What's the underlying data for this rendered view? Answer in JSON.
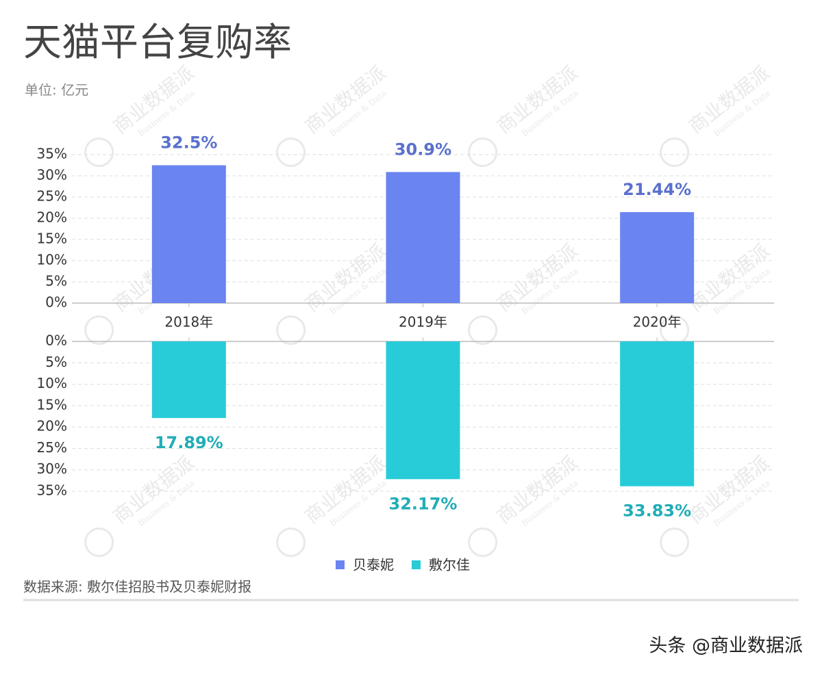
{
  "chart_data": [
    {
      "type": "bar",
      "title": "天猫平台复购率",
      "subtitle": "单位: 亿元",
      "categories": [
        "2018年",
        "2019年",
        "2020年"
      ],
      "series": [
        {
          "name": "贝泰妮",
          "color": "#6a84f0",
          "values": [
            32.5,
            30.9,
            21.44
          ],
          "value_labels": [
            "32.5%",
            "30.9%",
            "21.44%"
          ]
        }
      ],
      "ylim": [
        0,
        35
      ],
      "yticks": [
        {
          "value": 0,
          "label": "0%"
        },
        {
          "value": 5,
          "label": "5%"
        },
        {
          "value": 10,
          "label": "10%"
        },
        {
          "value": 15,
          "label": "15%"
        },
        {
          "value": 20,
          "label": "20%"
        },
        {
          "value": 25,
          "label": "25%"
        },
        {
          "value": 30,
          "label": "30%"
        },
        {
          "value": 35,
          "label": "35%"
        }
      ],
      "grid": true
    },
    {
      "type": "bar",
      "series": [
        {
          "name": "敷尔佳",
          "color": "#27ccd8",
          "values": [
            17.89,
            32.17,
            33.83
          ],
          "value_labels": [
            "17.89%",
            "32.17%",
            "33.83%"
          ]
        }
      ],
      "ylim": [
        35,
        0
      ],
      "yticks": [
        {
          "value": 0,
          "label": "0%"
        },
        {
          "value": 5,
          "label": "5%"
        },
        {
          "value": 10,
          "label": "10%"
        },
        {
          "value": 15,
          "label": "15%"
        },
        {
          "value": 20,
          "label": "20%"
        },
        {
          "value": 25,
          "label": "25%"
        },
        {
          "value": 30,
          "label": "30%"
        },
        {
          "value": 35,
          "label": "35%"
        }
      ],
      "grid": true
    }
  ],
  "source": "数据来源: 敷尔佳招股书及贝泰妮财报",
  "footer": "头条 @商业数据派",
  "watermark": [
    "商业数据派",
    "Business & Data"
  ]
}
